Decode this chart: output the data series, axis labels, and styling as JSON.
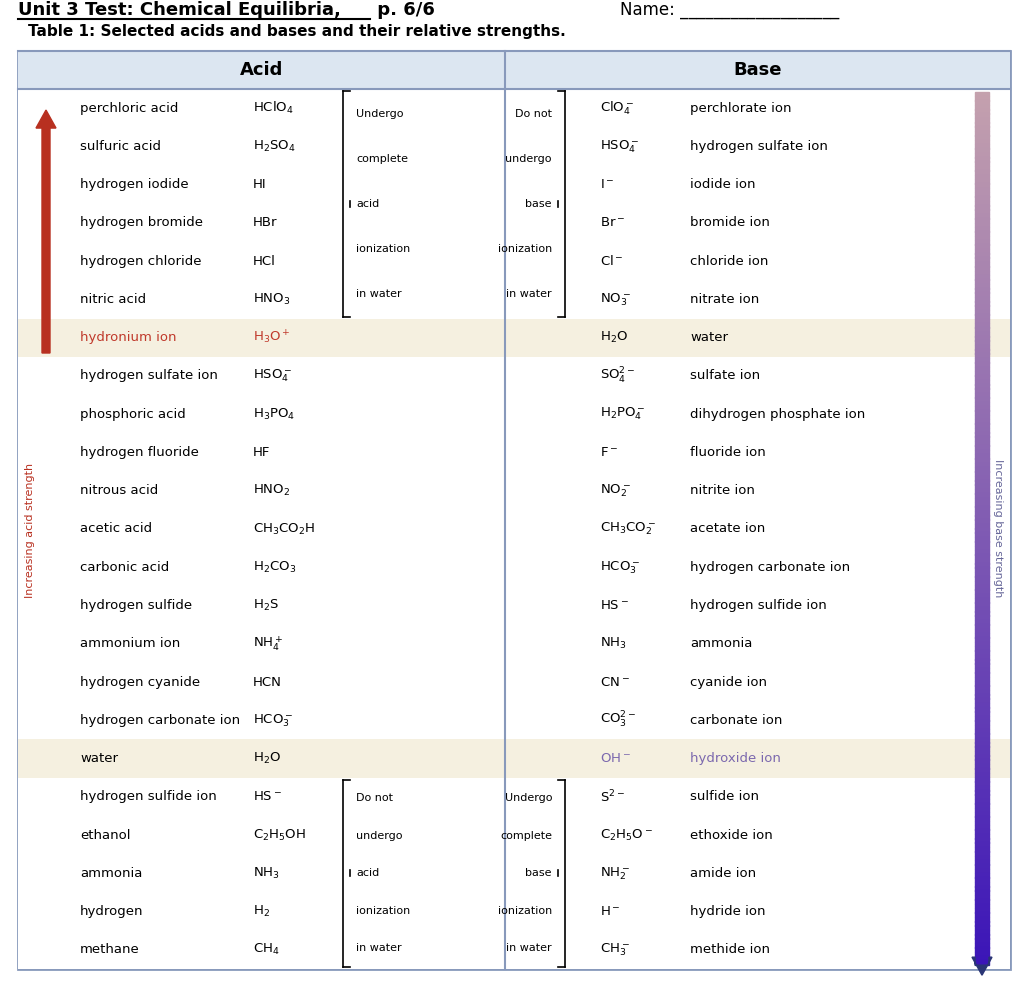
{
  "title_left": "Unit 3 Test: Chemical Equilibria,",
  "title_page": " p. 6/6",
  "title_right": "Name: ___________________",
  "subtitle": "Table 1: Selected acids and bases and their relative strengths.",
  "header_bg": "#dce6f1",
  "row_highlight_bg": "#f5f0e0",
  "outer_bg": "#dce6f1",
  "acid_color": "#b83020",
  "hydroxide_color": "#7b68ae",
  "hydronium_color": "#c0392b",
  "acid_label": "Acid",
  "base_label": "Base",
  "rows": [
    {
      "acid_name": "perchloric acid",
      "acid_formula": "HClO$_4$",
      "base_formula": "ClO$_4^-$",
      "base_name": "perchlorate ion",
      "highlight": false,
      "strong_acid": true,
      "strong_base": true,
      "special_acid": false,
      "special_base": false
    },
    {
      "acid_name": "sulfuric acid",
      "acid_formula": "H$_2$SO$_4$",
      "base_formula": "HSO$_4^-$",
      "base_name": "hydrogen sulfate ion",
      "highlight": false,
      "strong_acid": true,
      "strong_base": true,
      "special_acid": false,
      "special_base": false
    },
    {
      "acid_name": "hydrogen iodide",
      "acid_formula": "HI",
      "base_formula": "I$^-$",
      "base_name": "iodide ion",
      "highlight": false,
      "strong_acid": true,
      "strong_base": true,
      "special_acid": false,
      "special_base": false
    },
    {
      "acid_name": "hydrogen bromide",
      "acid_formula": "HBr",
      "base_formula": "Br$^-$",
      "base_name": "bromide ion",
      "highlight": false,
      "strong_acid": true,
      "strong_base": true,
      "special_acid": false,
      "special_base": false
    },
    {
      "acid_name": "hydrogen chloride",
      "acid_formula": "HCl",
      "base_formula": "Cl$^-$",
      "base_name": "chloride ion",
      "highlight": false,
      "strong_acid": true,
      "strong_base": true,
      "special_acid": false,
      "special_base": false
    },
    {
      "acid_name": "nitric acid",
      "acid_formula": "HNO$_3$",
      "base_formula": "NO$_3^-$",
      "base_name": "nitrate ion",
      "highlight": false,
      "strong_acid": true,
      "strong_base": true,
      "special_acid": false,
      "special_base": false
    },
    {
      "acid_name": "hydronium ion",
      "acid_formula": "H$_3$O$^+$",
      "base_formula": "H$_2$O",
      "base_name": "water",
      "highlight": true,
      "strong_acid": false,
      "strong_base": false,
      "special_acid": true,
      "special_base": false
    },
    {
      "acid_name": "hydrogen sulfate ion",
      "acid_formula": "HSO$_4^-$",
      "base_formula": "SO$_4^{2-}$",
      "base_name": "sulfate ion",
      "highlight": false,
      "strong_acid": false,
      "strong_base": false,
      "special_acid": false,
      "special_base": false
    },
    {
      "acid_name": "phosphoric acid",
      "acid_formula": "H$_3$PO$_4$",
      "base_formula": "H$_2$PO$_4^-$",
      "base_name": "dihydrogen phosphate ion",
      "highlight": false,
      "strong_acid": false,
      "strong_base": false,
      "special_acid": false,
      "special_base": false
    },
    {
      "acid_name": "hydrogen fluoride",
      "acid_formula": "HF",
      "base_formula": "F$^-$",
      "base_name": "fluoride ion",
      "highlight": false,
      "strong_acid": false,
      "strong_base": false,
      "special_acid": false,
      "special_base": false
    },
    {
      "acid_name": "nitrous acid",
      "acid_formula": "HNO$_2$",
      "base_formula": "NO$_2^-$",
      "base_name": "nitrite ion",
      "highlight": false,
      "strong_acid": false,
      "strong_base": false,
      "special_acid": false,
      "special_base": false
    },
    {
      "acid_name": "acetic acid",
      "acid_formula": "CH$_3$CO$_2$H",
      "base_formula": "CH$_3$CO$_2^-$",
      "base_name": "acetate ion",
      "highlight": false,
      "strong_acid": false,
      "strong_base": false,
      "special_acid": false,
      "special_base": false
    },
    {
      "acid_name": "carbonic acid",
      "acid_formula": "H$_2$CO$_3$",
      "base_formula": "HCO$_3^-$",
      "base_name": "hydrogen carbonate ion",
      "highlight": false,
      "strong_acid": false,
      "strong_base": false,
      "special_acid": false,
      "special_base": false
    },
    {
      "acid_name": "hydrogen sulfide",
      "acid_formula": "H$_2$S",
      "base_formula": "HS$^-$",
      "base_name": "hydrogen sulfide ion",
      "highlight": false,
      "strong_acid": false,
      "strong_base": false,
      "special_acid": false,
      "special_base": false
    },
    {
      "acid_name": "ammonium ion",
      "acid_formula": "NH$_4^+$",
      "base_formula": "NH$_3$",
      "base_name": "ammonia",
      "highlight": false,
      "strong_acid": false,
      "strong_base": false,
      "special_acid": false,
      "special_base": false
    },
    {
      "acid_name": "hydrogen cyanide",
      "acid_formula": "HCN",
      "base_formula": "CN$^-$",
      "base_name": "cyanide ion",
      "highlight": false,
      "strong_acid": false,
      "strong_base": false,
      "special_acid": false,
      "special_base": false
    },
    {
      "acid_name": "hydrogen carbonate ion",
      "acid_formula": "HCO$_3^-$",
      "base_formula": "CO$_3^{2-}$",
      "base_name": "carbonate ion",
      "highlight": false,
      "strong_acid": false,
      "strong_base": false,
      "special_acid": false,
      "special_base": false
    },
    {
      "acid_name": "water",
      "acid_formula": "H$_2$O",
      "base_formula": "OH$^-$",
      "base_name": "hydroxide ion",
      "highlight": true,
      "strong_acid": false,
      "strong_base": false,
      "special_acid": false,
      "special_base": true
    },
    {
      "acid_name": "hydrogen sulfide ion",
      "acid_formula": "HS$^-$",
      "base_formula": "S$^{2-}$",
      "base_name": "sulfide ion",
      "highlight": false,
      "strong_acid": false,
      "strong_base": true,
      "special_acid": false,
      "special_base": false
    },
    {
      "acid_name": "ethanol",
      "acid_formula": "C$_2$H$_5$OH",
      "base_formula": "C$_2$H$_5$O$^-$",
      "base_name": "ethoxide ion",
      "highlight": false,
      "strong_acid": false,
      "strong_base": true,
      "special_acid": false,
      "special_base": false
    },
    {
      "acid_name": "ammonia",
      "acid_formula": "NH$_3$",
      "base_formula": "NH$_2^-$",
      "base_name": "amide ion",
      "highlight": false,
      "strong_acid": false,
      "strong_base": true,
      "special_acid": false,
      "special_base": false
    },
    {
      "acid_name": "hydrogen",
      "acid_formula": "H$_2$",
      "base_formula": "H$^-$",
      "base_name": "hydride ion",
      "highlight": false,
      "strong_acid": false,
      "strong_base": true,
      "special_acid": false,
      "special_base": false
    },
    {
      "acid_name": "methane",
      "acid_formula": "CH$_4$",
      "base_formula": "CH$_3^-$",
      "base_name": "methide ion",
      "highlight": false,
      "strong_acid": false,
      "strong_base": true,
      "special_acid": false,
      "special_base": false
    }
  ],
  "strong_acid_label": [
    "Undergo",
    "complete",
    "acid",
    "ionization",
    "in water"
  ],
  "weak_acid_label": [
    "Do not",
    "undergo",
    "acid",
    "ionization",
    "in water"
  ],
  "strong_base_label": [
    "Undergo",
    "complete",
    "base",
    "ionization",
    "in water"
  ],
  "weak_base_label": [
    "Do not",
    "undergo",
    "base",
    "ionization",
    "in water"
  ]
}
